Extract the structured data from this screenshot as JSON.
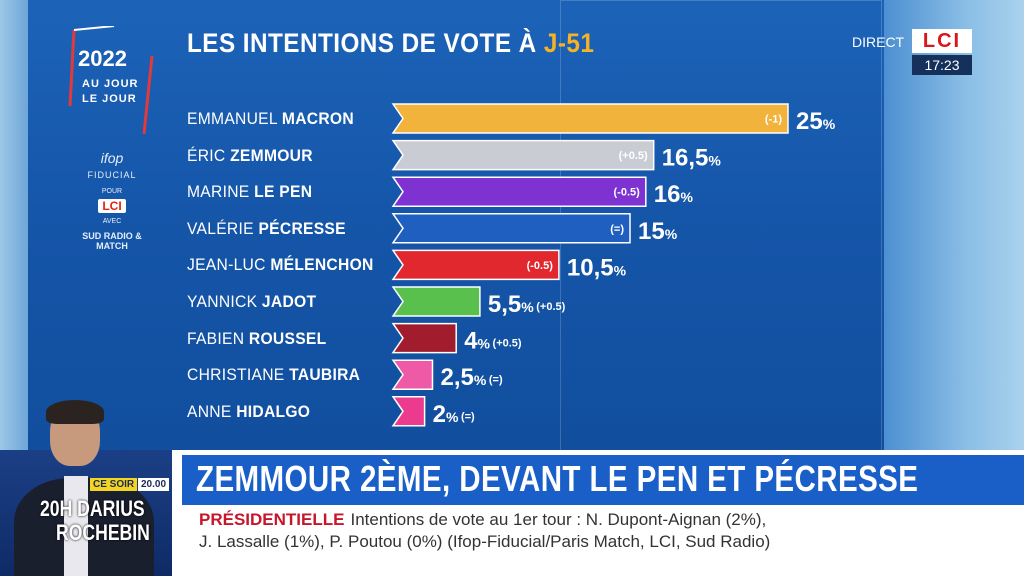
{
  "header": {
    "title_prefix": "LES INTENTIONS DE VOTE À ",
    "title_highlight": "J-51"
  },
  "branding": {
    "logo_year": "2022",
    "logo_line2": "AU JOUR",
    "logo_line3": "LE JOUR",
    "pollster": "ifop",
    "pollster_sub": "FIDUCIAL",
    "pour": "POUR",
    "lci": "LCI",
    "avec": "AVEC",
    "partners": "SUD RADIO & MATCH",
    "direct": "DIRECT",
    "channel": "LCI",
    "clock": "17:23"
  },
  "chart_data": {
    "type": "bar",
    "orientation": "horizontal",
    "title": "LES INTENTIONS DE VOTE À J-51",
    "unit": "%",
    "candidates": [
      {
        "first": "EMMANUEL",
        "last": "MACRON",
        "value": 25,
        "label": "25",
        "change": "(-1)",
        "color": "#f2b33d"
      },
      {
        "first": "ÉRIC",
        "last": "ZEMMOUR",
        "value": 16.5,
        "label": "16,5",
        "change": "(+0.5)",
        "color": "#c9ccd3"
      },
      {
        "first": "MARINE",
        "last": "LE PEN",
        "value": 16,
        "label": "16",
        "change": "(-0.5)",
        "color": "#7d32d1"
      },
      {
        "first": "VALÉRIE",
        "last": "PÉCRESSE",
        "value": 15,
        "label": "15",
        "change": "(=)",
        "color": "#1f5fc0"
      },
      {
        "first": "JEAN-LUC",
        "last": "MÉLENCHON",
        "value": 10.5,
        "label": "10,5",
        "change": "(-0.5)",
        "color": "#e0282e"
      },
      {
        "first": "YANNICK",
        "last": "JADOT",
        "value": 5.5,
        "label": "5,5",
        "change": "(+0.5)",
        "color": "#59c04e"
      },
      {
        "first": "FABIEN",
        "last": "ROUSSEL",
        "value": 4,
        "label": "4",
        "change": "(+0.5)",
        "color": "#a11d2e"
      },
      {
        "first": "CHRISTIANE",
        "last": "TAUBIRA",
        "value": 2.5,
        "label": "2,5",
        "change": "(=)",
        "color": "#ef5aa6"
      },
      {
        "first": "ANNE",
        "last": "HIDALGO",
        "value": 2,
        "label": "2",
        "change": "(=)",
        "color": "#ec3a8e"
      }
    ]
  },
  "ticker": {
    "headline": "ZEMMOUR 2ÈME, DEVANT LE PEN ET PÉCRESSE",
    "tag": "PRÉSIDENTIELLE",
    "line1": "Intentions de vote au 1er tour : N. Dupont-Aignan (2%),",
    "line2": "J. Lassalle (1%), P. Poutou (0%) (Ifop-Fiducial/Paris Match, LCI, Sud Radio)"
  },
  "show": {
    "ce_soir": "CE SOIR",
    "time": "20.00",
    "line1": "20H DARIUS",
    "line2": "ROCHEBIN"
  }
}
